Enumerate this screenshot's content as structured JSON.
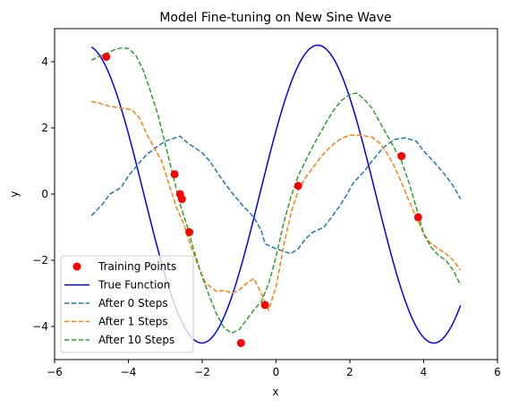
{
  "chart_data": {
    "type": "line",
    "title": "Model Fine-tuning on New Sine Wave",
    "xlabel": "x",
    "ylabel": "y",
    "xlim": [
      -6,
      6
    ],
    "ylim": [
      -5,
      5
    ],
    "xticks": [
      -6,
      -4,
      -2,
      0,
      2,
      4,
      6
    ],
    "yticks": [
      -4,
      -2,
      0,
      2,
      4
    ],
    "grid": false,
    "legend_position": "lower-left",
    "true_function": {
      "amplitude": 4.5,
      "phase": 0.44,
      "x_range": [
        -5,
        5
      ]
    },
    "series": [
      {
        "name": "Training Points",
        "kind": "scatter",
        "color": "#ff0000",
        "points": [
          [
            -4.6,
            4.15
          ],
          [
            -2.75,
            0.6
          ],
          [
            -2.6,
            0.0
          ],
          [
            -2.55,
            -0.15
          ],
          [
            -2.35,
            -1.15
          ],
          [
            -0.95,
            -4.5
          ],
          [
            -0.3,
            -3.35
          ],
          [
            0.6,
            0.25
          ],
          [
            3.4,
            1.15
          ],
          [
            3.85,
            -0.7
          ]
        ]
      },
      {
        "name": "True Function",
        "kind": "line",
        "color": "#0000ff",
        "dash": "solid"
      },
      {
        "name": "After 0 Steps",
        "kind": "line",
        "color": "#1f77b4",
        "dash": "dashed",
        "points": [
          [
            -5,
            -0.65
          ],
          [
            -4.7,
            -0.3
          ],
          [
            -4.5,
            0.0
          ],
          [
            -4.2,
            0.2
          ],
          [
            -4.0,
            0.55
          ],
          [
            -3.7,
            0.95
          ],
          [
            -3.5,
            1.2
          ],
          [
            -3.2,
            1.45
          ],
          [
            -3.0,
            1.6
          ],
          [
            -2.6,
            1.75
          ],
          [
            -2.4,
            1.55
          ],
          [
            -2.0,
            1.25
          ],
          [
            -1.8,
            1.0
          ],
          [
            -1.5,
            0.5
          ],
          [
            -1.2,
            0.05
          ],
          [
            -0.9,
            -0.35
          ],
          [
            -0.6,
            -0.7
          ],
          [
            -0.4,
            -1.1
          ],
          [
            -0.3,
            -1.5
          ],
          [
            0.0,
            -1.65
          ],
          [
            0.4,
            -1.8
          ],
          [
            0.6,
            -1.65
          ],
          [
            0.8,
            -1.35
          ],
          [
            1.0,
            -1.15
          ],
          [
            1.3,
            -1.0
          ],
          [
            1.5,
            -0.7
          ],
          [
            1.7,
            -0.4
          ],
          [
            1.9,
            -0.05
          ],
          [
            2.1,
            0.35
          ],
          [
            2.4,
            0.7
          ],
          [
            2.6,
            1.0
          ],
          [
            2.9,
            1.4
          ],
          [
            3.2,
            1.65
          ],
          [
            3.5,
            1.7
          ],
          [
            3.8,
            1.6
          ],
          [
            4.0,
            1.3
          ],
          [
            4.3,
            0.95
          ],
          [
            4.6,
            0.55
          ],
          [
            4.8,
            0.25
          ],
          [
            5.0,
            -0.15
          ]
        ]
      },
      {
        "name": "After 1 Steps",
        "kind": "line",
        "color": "#ff7f0e",
        "dash": "dashed",
        "points": [
          [
            -5,
            2.8
          ],
          [
            -4.8,
            2.75
          ],
          [
            -4.5,
            2.65
          ],
          [
            -4.2,
            2.6
          ],
          [
            -3.9,
            2.55
          ],
          [
            -3.7,
            2.3
          ],
          [
            -3.5,
            1.8
          ],
          [
            -3.3,
            1.4
          ],
          [
            -3.1,
            1.0
          ],
          [
            -2.9,
            0.3
          ],
          [
            -2.7,
            -0.4
          ],
          [
            -2.5,
            -0.9
          ],
          [
            -2.3,
            -1.6
          ],
          [
            -2.1,
            -2.2
          ],
          [
            -1.9,
            -2.7
          ],
          [
            -1.6,
            -2.95
          ],
          [
            -1.4,
            -2.9
          ],
          [
            -1.2,
            -3.0
          ],
          [
            -1.0,
            -2.9
          ],
          [
            -0.8,
            -2.7
          ],
          [
            -0.6,
            -2.55
          ],
          [
            -0.4,
            -3.0
          ],
          [
            -0.2,
            -3.5
          ],
          [
            0.0,
            -2.8
          ],
          [
            0.2,
            -1.6
          ],
          [
            0.4,
            -0.6
          ],
          [
            0.6,
            0.1
          ],
          [
            0.8,
            0.5
          ],
          [
            1.0,
            0.8
          ],
          [
            1.2,
            1.1
          ],
          [
            1.4,
            1.35
          ],
          [
            1.6,
            1.55
          ],
          [
            1.8,
            1.7
          ],
          [
            2.0,
            1.78
          ],
          [
            2.3,
            1.78
          ],
          [
            2.6,
            1.72
          ],
          [
            2.8,
            1.55
          ],
          [
            3.0,
            1.25
          ],
          [
            3.2,
            0.85
          ],
          [
            3.4,
            0.35
          ],
          [
            3.6,
            -0.2
          ],
          [
            3.8,
            -0.7
          ],
          [
            4.0,
            -1.2
          ],
          [
            4.2,
            -1.5
          ],
          [
            4.4,
            -1.65
          ],
          [
            4.6,
            -1.8
          ],
          [
            4.8,
            -2.0
          ],
          [
            5.0,
            -2.3
          ]
        ]
      },
      {
        "name": "After 10 Steps",
        "kind": "line",
        "color": "#2ca02c",
        "dash": "dashed",
        "points": [
          [
            -5,
            4.05
          ],
          [
            -4.8,
            4.15
          ],
          [
            -4.6,
            4.25
          ],
          [
            -4.4,
            4.35
          ],
          [
            -4.2,
            4.42
          ],
          [
            -4.0,
            4.4
          ],
          [
            -3.8,
            4.2
          ],
          [
            -3.6,
            3.75
          ],
          [
            -3.4,
            3.1
          ],
          [
            -3.2,
            2.4
          ],
          [
            -3.0,
            1.5
          ],
          [
            -2.8,
            0.6
          ],
          [
            -2.6,
            -0.3
          ],
          [
            -2.4,
            -1.0
          ],
          [
            -2.2,
            -1.8
          ],
          [
            -2.0,
            -2.5
          ],
          [
            -1.8,
            -3.1
          ],
          [
            -1.6,
            -3.65
          ],
          [
            -1.4,
            -4.05
          ],
          [
            -1.2,
            -4.2
          ],
          [
            -1.0,
            -4.1
          ],
          [
            -0.8,
            -3.8
          ],
          [
            -0.6,
            -3.5
          ],
          [
            -0.4,
            -3.25
          ],
          [
            -0.2,
            -2.7
          ],
          [
            0.0,
            -1.9
          ],
          [
            0.2,
            -0.9
          ],
          [
            0.4,
            -0.1
          ],
          [
            0.6,
            0.55
          ],
          [
            0.8,
            1.0
          ],
          [
            1.0,
            1.45
          ],
          [
            1.2,
            1.85
          ],
          [
            1.4,
            2.25
          ],
          [
            1.6,
            2.6
          ],
          [
            1.8,
            2.85
          ],
          [
            2.0,
            3.02
          ],
          [
            2.2,
            3.05
          ],
          [
            2.4,
            2.85
          ],
          [
            2.6,
            2.6
          ],
          [
            2.8,
            2.2
          ],
          [
            3.0,
            1.8
          ],
          [
            3.2,
            1.4
          ],
          [
            3.4,
            1.0
          ],
          [
            3.6,
            0.35
          ],
          [
            3.8,
            -0.4
          ],
          [
            4.0,
            -1.2
          ],
          [
            4.2,
            -1.6
          ],
          [
            4.4,
            -1.85
          ],
          [
            4.6,
            -2.0
          ],
          [
            4.8,
            -2.3
          ],
          [
            5.0,
            -2.75
          ]
        ]
      }
    ]
  }
}
